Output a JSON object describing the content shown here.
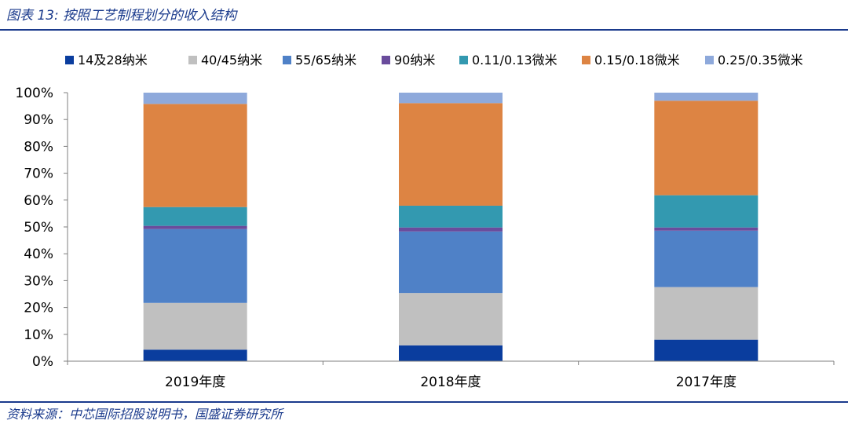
{
  "figure": {
    "title": "图表 13:  按照工艺制程划分的收入结构",
    "source": "资料来源：中芯国际招股说明书，国盛证券研究所"
  },
  "chart_data": {
    "type": "bar",
    "stacked": true,
    "percent": true,
    "categories": [
      "2019年度",
      "2018年度",
      "2017年度"
    ],
    "ylim": [
      0,
      100
    ],
    "yticks": [
      "0%",
      "10%",
      "20%",
      "30%",
      "40%",
      "50%",
      "60%",
      "70%",
      "80%",
      "90%",
      "100%"
    ],
    "grid": false,
    "legend_position": "top",
    "series": [
      {
        "name": "14及28纳米",
        "color": "#0a3d9e",
        "values": [
          4.3,
          5.9,
          8.0
        ]
      },
      {
        "name": "40/45纳米",
        "color": "#c0c0c0",
        "values": [
          17.4,
          19.5,
          19.6
        ]
      },
      {
        "name": "55/65纳米",
        "color": "#4f81c7",
        "values": [
          27.5,
          22.9,
          21.0
        ]
      },
      {
        "name": "90纳米",
        "color": "#6a4c9c",
        "values": [
          1.2,
          1.5,
          1.2
        ]
      },
      {
        "name": "0.11/0.13微米",
        "color": "#3399b0",
        "values": [
          7.0,
          8.1,
          12.0
        ]
      },
      {
        "name": "0.15/0.18微米",
        "color": "#dd8443",
        "values": [
          38.4,
          38.2,
          35.2
        ]
      },
      {
        "name": "0.25/0.35微米",
        "color": "#8ea9db",
        "values": [
          4.2,
          3.9,
          3.0
        ]
      }
    ]
  }
}
